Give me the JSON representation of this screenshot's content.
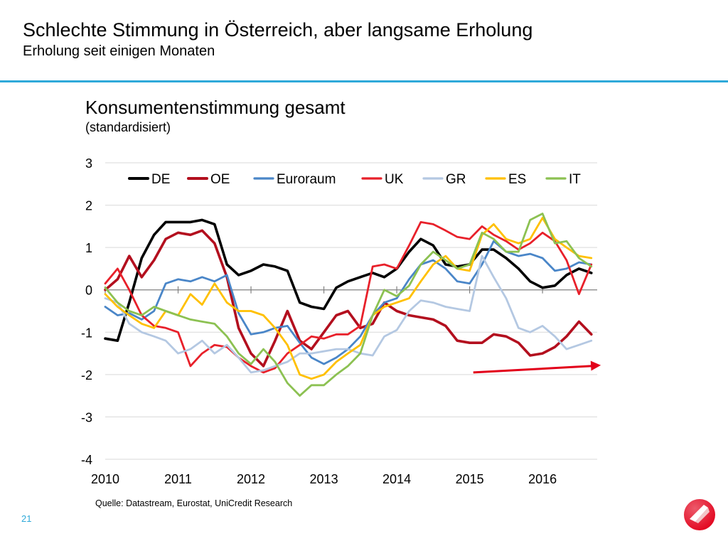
{
  "slide": {
    "title": "Schlechte Stimmung in Österreich, aber langsame Erholung",
    "subtitle": "Erholung seit einigen Monaten",
    "source": "Quelle: Datastream, Eurostat, UniCredit Research",
    "page_number": "21",
    "accent_color": "#2fa9d9",
    "logo_color": "#e2001a"
  },
  "chart_data": {
    "type": "line",
    "title": "Konsumentenstimmung gesamt",
    "subtitle": "(standardisiert)",
    "xlabel": "",
    "ylabel": "",
    "xlim": [
      2010,
      2016.75
    ],
    "ylim": [
      -4,
      3
    ],
    "y_ticks": [
      3,
      2,
      1,
      0,
      -1,
      -2,
      -3,
      -4
    ],
    "y_tick_labels": [
      "3",
      "2",
      "1",
      "0",
      "-1",
      "-2",
      "-3",
      "-4"
    ],
    "x_ticks": [
      2010,
      2011,
      2012,
      2013,
      2014,
      2015,
      2016
    ],
    "x_tick_labels": [
      "2010",
      "2011",
      "2012",
      "2013",
      "2014",
      "2015",
      "2016"
    ],
    "grid": "horizontal",
    "legend_position": "top",
    "annotation": {
      "type": "trend-arrow",
      "color": "#e2001a",
      "from": [
        2015.05,
        -1.95
      ],
      "to": [
        2016.8,
        -1.78
      ]
    },
    "series": [
      {
        "name": "DE",
        "color": "#000000",
        "x": [
          2010,
          2010.17,
          2010.33,
          2010.5,
          2010.67,
          2010.83,
          2011,
          2011.17,
          2011.33,
          2011.5,
          2011.67,
          2011.83,
          2012,
          2012.17,
          2012.33,
          2012.5,
          2012.67,
          2012.83,
          2013,
          2013.17,
          2013.33,
          2013.5,
          2013.67,
          2013.83,
          2014,
          2014.17,
          2014.33,
          2014.5,
          2014.67,
          2014.83,
          2015,
          2015.17,
          2015.33,
          2015.5,
          2015.67,
          2015.83,
          2016,
          2016.17,
          2016.33,
          2016.5,
          2016.67
        ],
        "y": [
          -1.15,
          -1.2,
          -0.3,
          0.75,
          1.3,
          1.6,
          1.6,
          1.6,
          1.65,
          1.55,
          0.6,
          0.35,
          0.45,
          0.6,
          0.55,
          0.45,
          -0.3,
          -0.4,
          -0.45,
          0.05,
          0.2,
          0.3,
          0.4,
          0.3,
          0.5,
          0.9,
          1.2,
          1.05,
          0.6,
          0.55,
          0.6,
          0.95,
          0.95,
          0.75,
          0.5,
          0.2,
          0.05,
          0.1,
          0.35,
          0.5,
          0.4
        ]
      },
      {
        "name": "OE",
        "color": "#b30f1e",
        "x": [
          2010,
          2010.17,
          2010.33,
          2010.5,
          2010.67,
          2010.83,
          2011,
          2011.17,
          2011.33,
          2011.5,
          2011.67,
          2011.83,
          2012,
          2012.17,
          2012.33,
          2012.5,
          2012.67,
          2012.83,
          2013,
          2013.17,
          2013.33,
          2013.5,
          2013.67,
          2013.83,
          2014,
          2014.17,
          2014.33,
          2014.5,
          2014.67,
          2014.83,
          2015,
          2015.17,
          2015.33,
          2015.5,
          2015.67,
          2015.83,
          2016,
          2016.17,
          2016.33,
          2016.5,
          2016.67
        ],
        "y": [
          0,
          0.25,
          0.8,
          0.3,
          0.7,
          1.2,
          1.35,
          1.3,
          1.4,
          1.1,
          0.3,
          -0.9,
          -1.5,
          -1.8,
          -1.2,
          -0.5,
          -1.2,
          -1.4,
          -1.0,
          -0.6,
          -0.5,
          -0.9,
          -0.8,
          -0.3,
          -0.5,
          -0.6,
          -0.65,
          -0.7,
          -0.85,
          -1.2,
          -1.25,
          -1.25,
          -1.05,
          -1.1,
          -1.25,
          -1.55,
          -1.5,
          -1.35,
          -1.1,
          -0.75,
          -1.05
        ]
      },
      {
        "name": "Euroraum",
        "color": "#4a86c8",
        "x": [
          2010,
          2010.17,
          2010.33,
          2010.5,
          2010.67,
          2010.83,
          2011,
          2011.17,
          2011.33,
          2011.5,
          2011.67,
          2011.83,
          2012,
          2012.17,
          2012.33,
          2012.5,
          2012.67,
          2012.83,
          2013,
          2013.17,
          2013.33,
          2013.5,
          2013.67,
          2013.83,
          2014,
          2014.17,
          2014.33,
          2014.5,
          2014.67,
          2014.83,
          2015,
          2015.17,
          2015.33,
          2015.5,
          2015.67,
          2015.83,
          2016,
          2016.17,
          2016.33,
          2016.5,
          2016.67
        ],
        "y": [
          -0.4,
          -0.6,
          -0.55,
          -0.7,
          -0.5,
          0.15,
          0.25,
          0.2,
          0.3,
          0.2,
          0.35,
          -0.55,
          -1.05,
          -1.0,
          -0.9,
          -0.85,
          -1.25,
          -1.6,
          -1.75,
          -1.6,
          -1.4,
          -1.1,
          -0.6,
          -0.3,
          -0.2,
          0.25,
          0.6,
          0.7,
          0.5,
          0.2,
          0.15,
          0.6,
          1.15,
          0.9,
          0.8,
          0.85,
          0.75,
          0.45,
          0.5,
          0.65,
          0.6
        ]
      },
      {
        "name": "UK",
        "color": "#e8202a",
        "x": [
          2010,
          2010.17,
          2010.33,
          2010.5,
          2010.67,
          2010.83,
          2011,
          2011.17,
          2011.33,
          2011.5,
          2011.67,
          2011.83,
          2012,
          2012.17,
          2012.33,
          2012.5,
          2012.67,
          2012.83,
          2013,
          2013.17,
          2013.33,
          2013.5,
          2013.67,
          2013.83,
          2014,
          2014.17,
          2014.33,
          2014.5,
          2014.67,
          2014.83,
          2015,
          2015.17,
          2015.33,
          2015.5,
          2015.67,
          2015.83,
          2016,
          2016.17,
          2016.33,
          2016.5,
          2016.67
        ],
        "y": [
          0.15,
          0.5,
          0.0,
          -0.6,
          -0.85,
          -0.9,
          -1.0,
          -1.8,
          -1.5,
          -1.3,
          -1.35,
          -1.6,
          -1.8,
          -1.95,
          -1.85,
          -1.5,
          -1.3,
          -1.1,
          -1.15,
          -1.05,
          -1.05,
          -0.85,
          0.55,
          0.6,
          0.5,
          1.05,
          1.6,
          1.55,
          1.4,
          1.25,
          1.2,
          1.5,
          1.3,
          1.15,
          0.95,
          1.1,
          1.35,
          1.15,
          0.7,
          -0.1,
          0.6
        ]
      },
      {
        "name": "GR",
        "color": "#b4c8e2",
        "x": [
          2010,
          2010.17,
          2010.33,
          2010.5,
          2010.67,
          2010.83,
          2011,
          2011.17,
          2011.33,
          2011.5,
          2011.67,
          2011.83,
          2012,
          2012.17,
          2012.33,
          2012.5,
          2012.67,
          2012.83,
          2013,
          2013.17,
          2013.33,
          2013.5,
          2013.67,
          2013.83,
          2014,
          2014.17,
          2014.33,
          2014.5,
          2014.67,
          2014.83,
          2015,
          2015.17,
          2015.33,
          2015.5,
          2015.67,
          2015.83,
          2016,
          2016.17,
          2016.33,
          2016.5,
          2016.67
        ],
        "y": [
          -0.2,
          -0.3,
          -0.8,
          -1.0,
          -1.1,
          -1.2,
          -1.5,
          -1.4,
          -1.2,
          -1.5,
          -1.3,
          -1.6,
          -1.95,
          -1.9,
          -1.8,
          -1.7,
          -1.5,
          -1.5,
          -1.45,
          -1.4,
          -1.4,
          -1.5,
          -1.55,
          -1.1,
          -0.95,
          -0.5,
          -0.25,
          -0.3,
          -0.4,
          -0.45,
          -0.5,
          0.8,
          0.3,
          -0.2,
          -0.9,
          -1.0,
          -0.85,
          -1.1,
          -1.4,
          -1.3,
          -1.2
        ]
      },
      {
        "name": "ES",
        "color": "#ffc000",
        "x": [
          2010,
          2010.17,
          2010.33,
          2010.5,
          2010.67,
          2010.83,
          2011,
          2011.17,
          2011.33,
          2011.5,
          2011.67,
          2011.83,
          2012,
          2012.17,
          2012.33,
          2012.5,
          2012.67,
          2012.83,
          2013,
          2013.17,
          2013.33,
          2013.5,
          2013.67,
          2013.83,
          2014,
          2014.17,
          2014.33,
          2014.5,
          2014.67,
          2014.83,
          2015,
          2015.17,
          2015.33,
          2015.5,
          2015.67,
          2015.83,
          2016,
          2016.17,
          2016.33,
          2016.5,
          2016.67
        ],
        "y": [
          -0.1,
          -0.4,
          -0.6,
          -0.8,
          -0.9,
          -0.5,
          -0.6,
          -0.1,
          -0.35,
          0.15,
          -0.3,
          -0.5,
          -0.5,
          -0.6,
          -0.9,
          -1.3,
          -2.0,
          -2.1,
          -2.0,
          -1.7,
          -1.5,
          -1.3,
          -0.6,
          -0.4,
          -0.3,
          -0.2,
          0.2,
          0.6,
          0.8,
          0.5,
          0.45,
          1.3,
          1.55,
          1.2,
          1.1,
          1.2,
          1.7,
          1.2,
          1.0,
          0.8,
          0.75
        ]
      },
      {
        "name": "IT",
        "color": "#8cc152",
        "x": [
          2010,
          2010.17,
          2010.33,
          2010.5,
          2010.67,
          2010.83,
          2011,
          2011.17,
          2011.33,
          2011.5,
          2011.67,
          2011.83,
          2012,
          2012.17,
          2012.33,
          2012.5,
          2012.67,
          2012.83,
          2013,
          2013.17,
          2013.33,
          2013.5,
          2013.67,
          2013.83,
          2014,
          2014.17,
          2014.33,
          2014.5,
          2014.67,
          2014.83,
          2015,
          2015.17,
          2015.33,
          2015.5,
          2015.67,
          2015.83,
          2016,
          2016.17,
          2016.33,
          2016.5,
          2016.67
        ],
        "y": [
          0.05,
          -0.3,
          -0.5,
          -0.6,
          -0.4,
          -0.5,
          -0.6,
          -0.7,
          -0.75,
          -0.8,
          -1.1,
          -1.5,
          -1.75,
          -1.4,
          -1.7,
          -2.2,
          -2.5,
          -2.25,
          -2.25,
          -2.0,
          -1.8,
          -1.5,
          -0.6,
          0.0,
          -0.15,
          0.1,
          0.6,
          0.9,
          0.7,
          0.5,
          0.6,
          1.35,
          1.2,
          0.9,
          0.9,
          1.65,
          1.8,
          1.1,
          1.15,
          0.75,
          0.55
        ]
      }
    ]
  }
}
